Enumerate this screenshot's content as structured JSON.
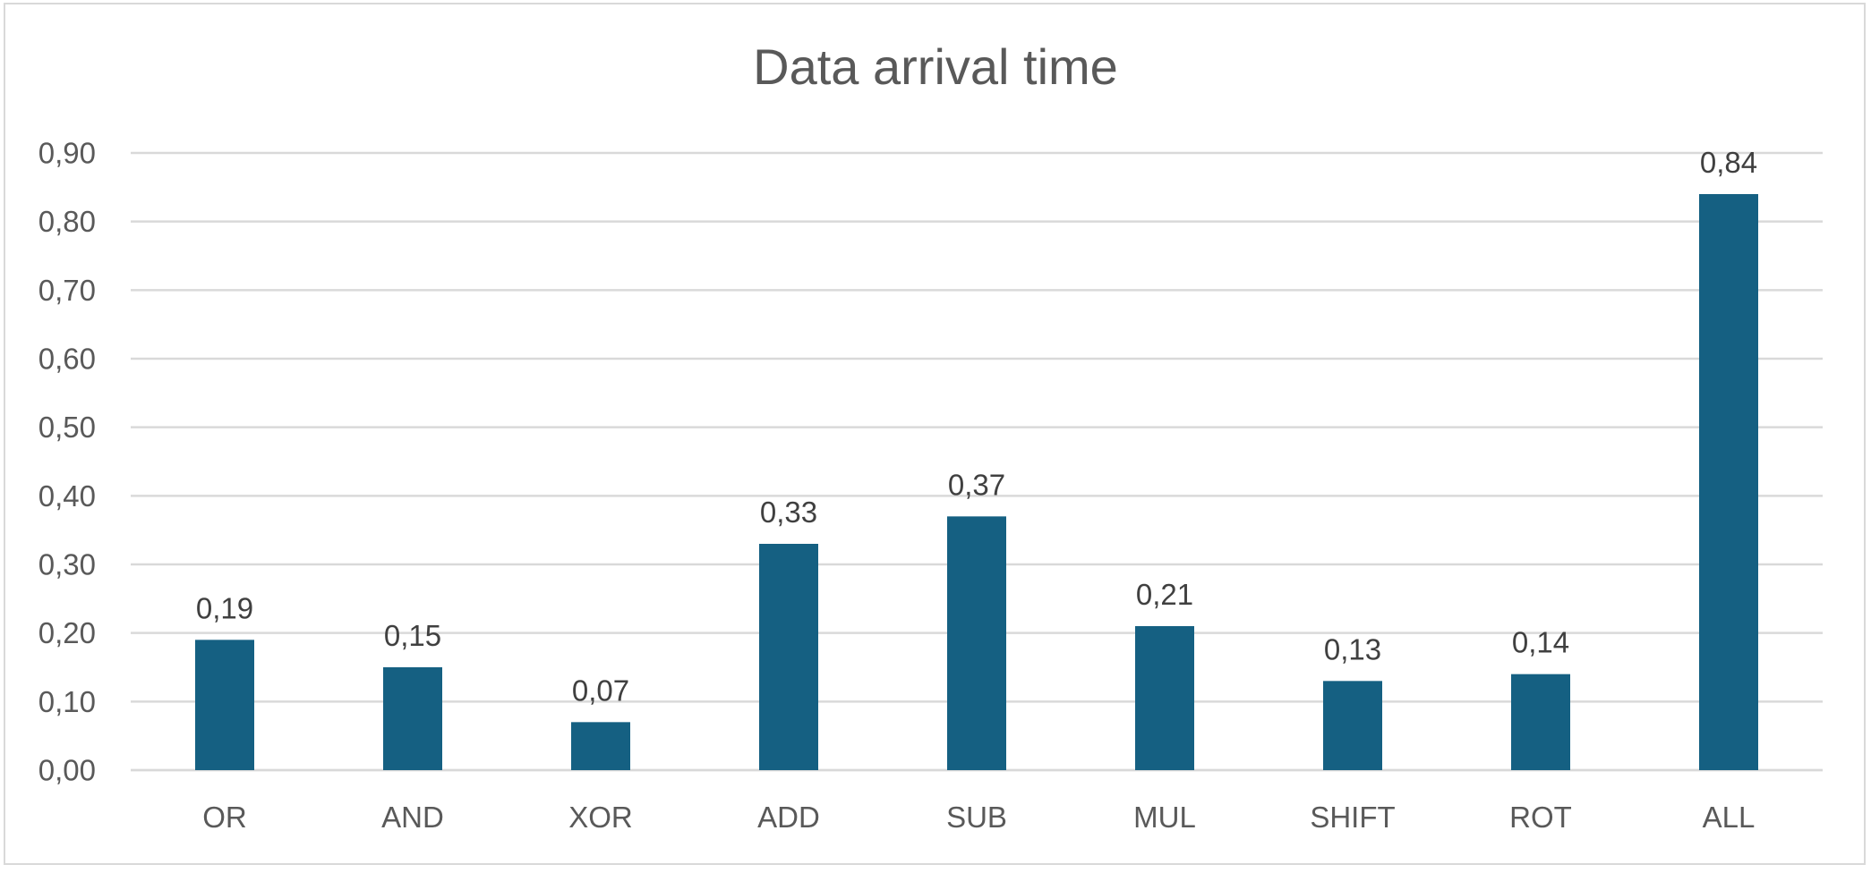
{
  "chart_data": {
    "type": "bar",
    "title": "Data arrival time",
    "xlabel": "",
    "ylabel": "",
    "categories": [
      "OR",
      "AND",
      "XOR",
      "ADD",
      "SUB",
      "MUL",
      "SHIFT",
      "ROT",
      "ALL"
    ],
    "series": [
      {
        "values": [
          0.19,
          0.15,
          0.07,
          0.33,
          0.37,
          0.21,
          0.13,
          0.14,
          0.84
        ]
      }
    ],
    "data_labels": [
      "0,19",
      "0,15",
      "0,07",
      "0,33",
      "0,37",
      "0,21",
      "0,13",
      "0,14",
      "0,84"
    ],
    "y_ticks": [
      0.0,
      0.1,
      0.2,
      0.3,
      0.4,
      0.5,
      0.6,
      0.7,
      0.8,
      0.9
    ],
    "y_tick_labels": [
      "0,00",
      "0,10",
      "0,20",
      "0,30",
      "0,40",
      "0,50",
      "0,60",
      "0,70",
      "0,80",
      "0,90"
    ],
    "ylim": [
      0,
      0.9
    ],
    "grid": true,
    "legend": "none",
    "colors": {
      "bar": "#156082",
      "grid": "#d9d9d9",
      "tick_text": "#595959",
      "label_text": "#404040"
    }
  }
}
